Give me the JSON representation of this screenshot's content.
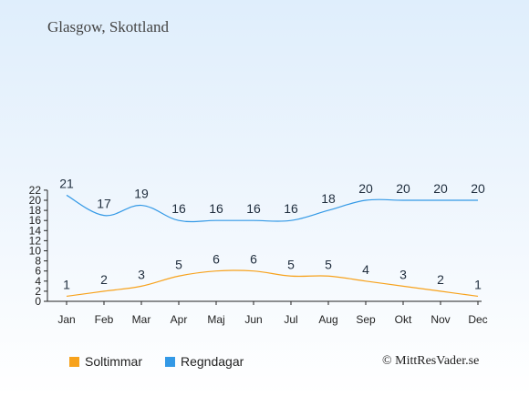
{
  "header": {
    "location": "Glasgow, Skottland"
  },
  "legend": {
    "sun_label": "Soltimmar",
    "rain_label": "Regndagar"
  },
  "credit": "© MittResVader.se",
  "colors": {
    "sun": "#f7a21c",
    "rain": "#3399e6",
    "axis": "#222222"
  },
  "chart_data": {
    "type": "line",
    "categories": [
      "Jan",
      "Feb",
      "Mar",
      "Apr",
      "Maj",
      "Jun",
      "Jul",
      "Aug",
      "Sep",
      "Okt",
      "Nov",
      "Dec"
    ],
    "series": [
      {
        "name": "Soltimmar",
        "color": "#f7a21c",
        "values": [
          1,
          2,
          3,
          5,
          6,
          6,
          5,
          5,
          4,
          3,
          2,
          1
        ]
      },
      {
        "name": "Regndagar",
        "color": "#3399e6",
        "values": [
          21,
          17,
          19,
          16,
          16,
          16,
          16,
          18,
          20,
          20,
          20,
          20
        ]
      }
    ],
    "yticks": [
      0,
      2,
      4,
      6,
      8,
      10,
      12,
      14,
      16,
      18,
      20,
      22
    ],
    "ylim": [
      0,
      22
    ],
    "grid": false,
    "legend_position": "bottom-left"
  }
}
